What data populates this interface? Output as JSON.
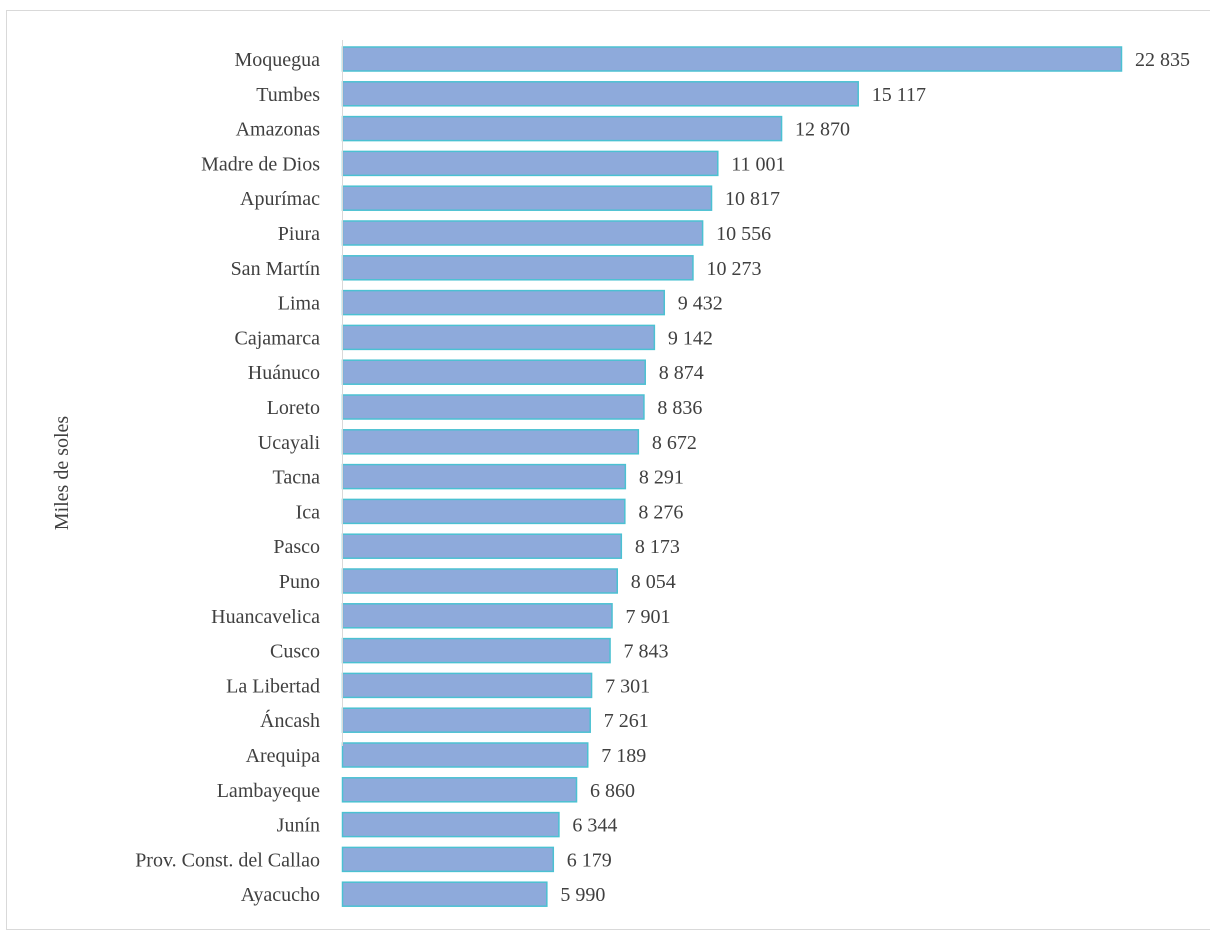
{
  "chart_data": {
    "type": "bar",
    "orientation": "horizontal",
    "title": "",
    "xlabel": "",
    "ylabel": "Miles de soles",
    "categories": [
      "Moquegua",
      "Tumbes",
      "Amazonas",
      "Madre de Dios",
      "Apurímac",
      "Piura",
      "San Martín",
      "Lima",
      "Cajamarca",
      "Huánuco",
      "Loreto",
      "Ucayali",
      "Tacna",
      "Ica",
      "Pasco",
      "Puno",
      "Huancavelica",
      "Cusco",
      "La Libertad",
      "Áncash",
      "Arequipa",
      "Lambayeque",
      "Junín",
      "Prov. Const. del Callao",
      "Ayacucho"
    ],
    "values": [
      22835,
      15117,
      12870,
      11001,
      10817,
      10556,
      10273,
      9432,
      9142,
      8874,
      8836,
      8672,
      8291,
      8276,
      8173,
      8054,
      7901,
      7843,
      7301,
      7261,
      7189,
      6860,
      6344,
      6179,
      5990
    ],
    "value_labels": [
      "22 835",
      "15 117",
      "12 870",
      "11 001",
      "10 817",
      "10 556",
      "10 273",
      "9 432",
      "9 142",
      "8 874",
      "8 836",
      "8 672",
      "8 291",
      "8 276",
      "8 173",
      "8 054",
      "7 901",
      "7 843",
      "7 301",
      "7 261",
      "7 189",
      "6 860",
      "6 344",
      "6 179",
      "5 990"
    ],
    "xlim": [
      0,
      22835
    ],
    "grid": false,
    "legend": "none",
    "colors": {
      "bar_fill": "#8eaadb",
      "bar_stroke": "#4bc1d2",
      "axis": "#d9d9d9",
      "text": "#404040"
    }
  }
}
